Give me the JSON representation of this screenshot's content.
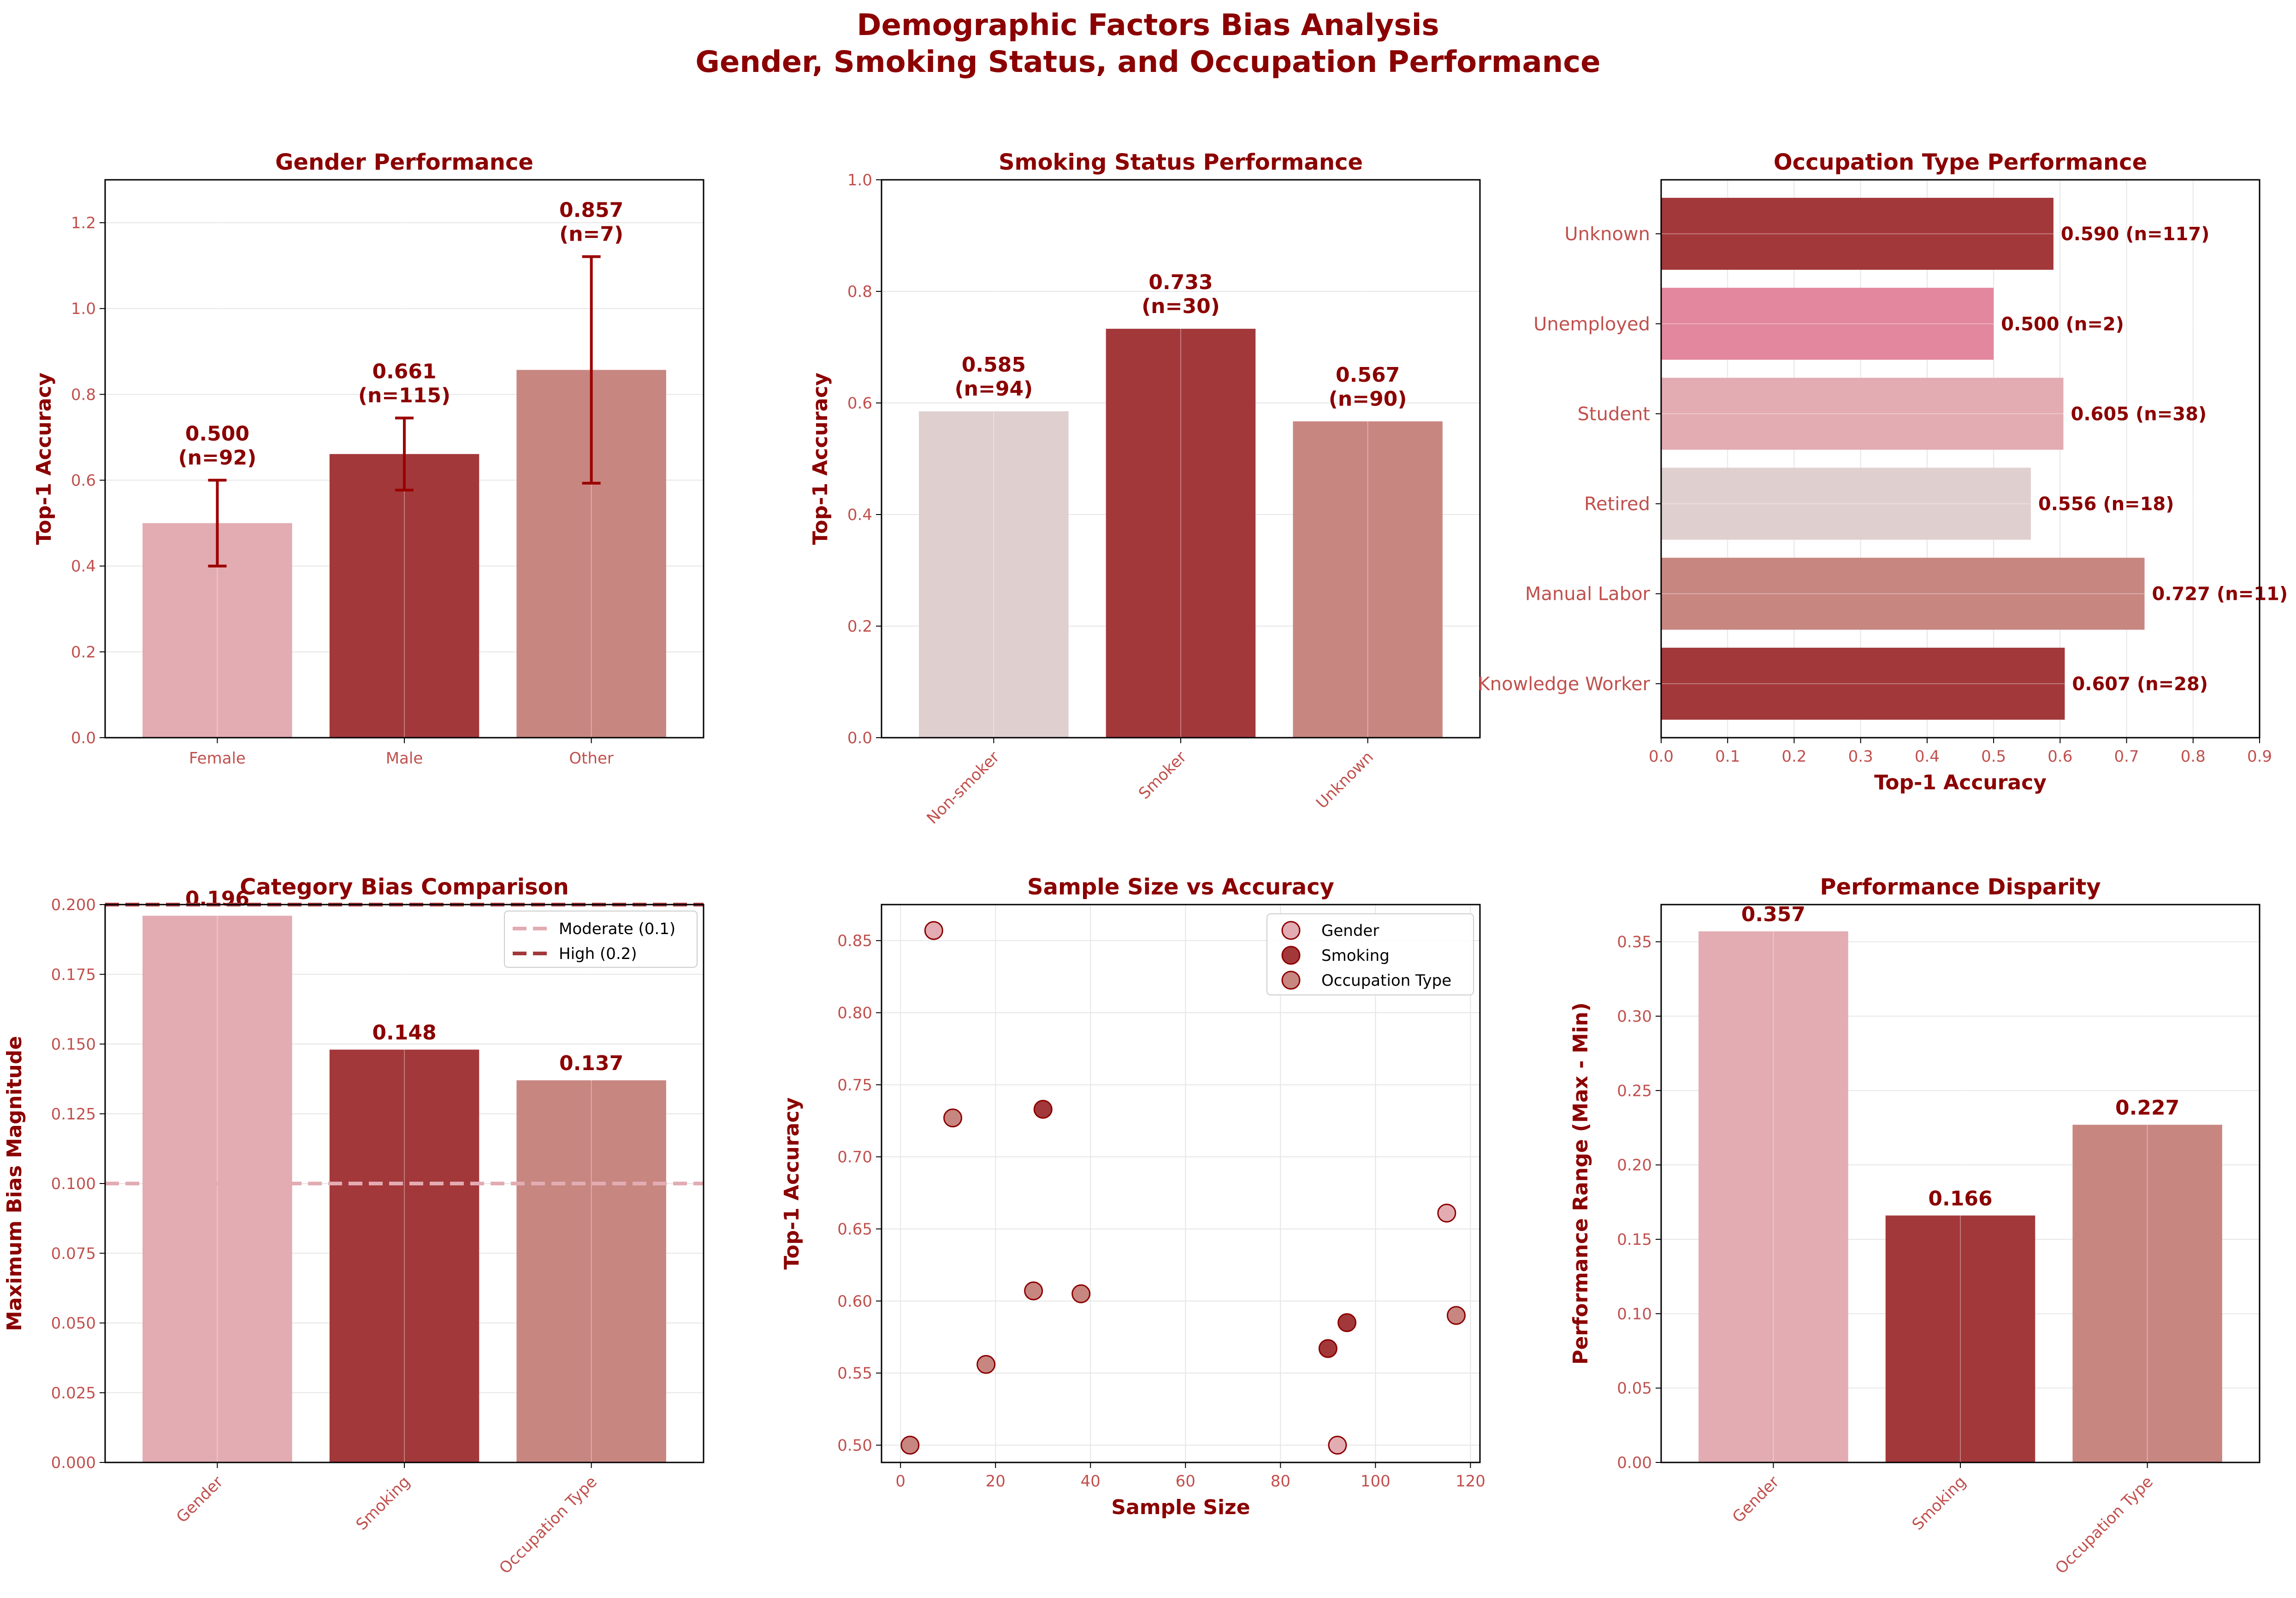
{
  "figure": {
    "title_line1": "Demographic Factors Bias Analysis",
    "title_line2": "Gender, Smoking Status, and Occupation Performance"
  },
  "colors": {
    "title": "#8b0000",
    "tick": "#c0504d",
    "dark_red": "#a3383a",
    "pink": "#e2acb2",
    "rose": "#c88681",
    "greige": "#dfcfcf",
    "hot_pink": "#e2879e",
    "error_bar": "#9b0000",
    "grid": "#e6e6e6"
  },
  "chart_data": [
    {
      "id": "gender",
      "type": "bar",
      "title": "Gender Performance",
      "xlabel": "",
      "ylabel": "Top-1 Accuracy",
      "categories": [
        "Female",
        "Male",
        "Other"
      ],
      "values": [
        0.5,
        0.661,
        0.857
      ],
      "n": [
        92,
        115,
        7
      ],
      "value_labels": [
        "0.500",
        "0.661",
        "0.857"
      ],
      "n_labels": [
        "(n=92)",
        "(n=115)",
        "(n=7)"
      ],
      "error_low": [
        0.4,
        0.577,
        0.593
      ],
      "error_high": [
        0.6,
        0.745,
        1.121
      ],
      "bar_colors": [
        "#e2acb2",
        "#a3383a",
        "#c88681"
      ],
      "ylim": [
        0,
        1.3
      ],
      "yticks": [
        0.0,
        0.2,
        0.4,
        0.6,
        0.8,
        1.0,
        1.2
      ],
      "ytick_labels": [
        "0.0",
        "0.2",
        "0.4",
        "0.6",
        "0.8",
        "1.0",
        "1.2"
      ],
      "grid": true
    },
    {
      "id": "smoking",
      "type": "bar",
      "title": "Smoking Status Performance",
      "xlabel": "",
      "ylabel": "Top-1 Accuracy",
      "categories": [
        "Non-smoker",
        "Smoker",
        "Unknown"
      ],
      "values": [
        0.585,
        0.733,
        0.567
      ],
      "value_labels": [
        "0.585",
        "0.733",
        "0.567"
      ],
      "n_labels": [
        "(n=94)",
        "(n=30)",
        "(n=90)"
      ],
      "bar_colors": [
        "#dfcfcf",
        "#a3383a",
        "#c88681"
      ],
      "ylim": [
        0,
        1.0
      ],
      "yticks": [
        0.0,
        0.2,
        0.4,
        0.6,
        0.8,
        1.0
      ],
      "ytick_labels": [
        "0.0",
        "0.2",
        "0.4",
        "0.6",
        "0.8",
        "1.0"
      ],
      "grid": true
    },
    {
      "id": "occupation",
      "type": "bar",
      "orientation": "horizontal",
      "title": "Occupation Type Performance",
      "xlabel": "Top-1 Accuracy",
      "ylabel": "",
      "categories": [
        "Knowledge Worker",
        "Manual Labor",
        "Retired",
        "Student",
        "Unemployed",
        "Unknown"
      ],
      "values": [
        0.607,
        0.727,
        0.556,
        0.605,
        0.5,
        0.59
      ],
      "value_labels": [
        "0.607 (n=28)",
        "0.727 (n=11)",
        "0.556 (n=18)",
        "0.605 (n=38)",
        "0.500 (n=2)",
        "0.590 (n=117)"
      ],
      "bar_colors": [
        "#a3383a",
        "#c88681",
        "#dfcfcf",
        "#e2acb2",
        "#e2879e",
        "#a3383a"
      ],
      "xlim": [
        0,
        0.9
      ],
      "xticks": [
        0.0,
        0.1,
        0.2,
        0.3,
        0.4,
        0.5,
        0.6,
        0.7,
        0.8,
        0.9
      ],
      "xtick_labels": [
        "0.0",
        "0.1",
        "0.2",
        "0.3",
        "0.4",
        "0.5",
        "0.6",
        "0.7",
        "0.8",
        "0.9"
      ],
      "grid": true
    },
    {
      "id": "bias",
      "type": "bar",
      "title": "Category Bias Comparison",
      "xlabel": "",
      "ylabel": "Maximum Bias Magnitude",
      "categories": [
        "Gender",
        "Smoking",
        "Occupation Type"
      ],
      "values": [
        0.196,
        0.148,
        0.137
      ],
      "value_labels": [
        "0.196",
        "0.148",
        "0.137"
      ],
      "bar_colors": [
        "#e2acb2",
        "#a3383a",
        "#c88681"
      ],
      "ylim": [
        0,
        0.2
      ],
      "yticks": [
        0.0,
        0.025,
        0.05,
        0.075,
        0.1,
        0.125,
        0.15,
        0.175,
        0.2
      ],
      "ytick_labels": [
        "0.000",
        "0.025",
        "0.050",
        "0.075",
        "0.100",
        "0.125",
        "0.150",
        "0.175",
        "0.200"
      ],
      "reference_lines": [
        {
          "label": "Moderate (0.1)",
          "y": 0.1,
          "color": "#e2acb2"
        },
        {
          "label": "High (0.2)",
          "y": 0.2,
          "color": "#a3383a"
        }
      ],
      "legend": "top-right",
      "grid": true
    },
    {
      "id": "scatter",
      "type": "scatter",
      "title": "Sample Size vs Accuracy",
      "xlabel": "Sample Size",
      "ylabel": "Top-1 Accuracy",
      "xlim": [
        -4,
        122
      ],
      "ylim": [
        0.488,
        0.875
      ],
      "xticks": [
        0,
        20,
        40,
        60,
        80,
        100,
        120
      ],
      "xtick_labels": [
        "0",
        "20",
        "40",
        "60",
        "80",
        "100",
        "120"
      ],
      "yticks": [
        0.5,
        0.55,
        0.6,
        0.65,
        0.7,
        0.75,
        0.8,
        0.85
      ],
      "ytick_labels": [
        "0.50",
        "0.55",
        "0.60",
        "0.65",
        "0.70",
        "0.75",
        "0.80",
        "0.85"
      ],
      "series": [
        {
          "name": "Gender",
          "color": "#e2acb2",
          "x": [
            92,
            115,
            7
          ],
          "y": [
            0.5,
            0.661,
            0.857
          ]
        },
        {
          "name": "Smoking",
          "color": "#a3383a",
          "x": [
            94,
            30,
            90
          ],
          "y": [
            0.585,
            0.733,
            0.567
          ]
        },
        {
          "name": "Occupation Type",
          "color": "#c88681",
          "x": [
            28,
            11,
            18,
            38,
            2,
            117
          ],
          "y": [
            0.607,
            0.727,
            0.556,
            0.605,
            0.5,
            0.59
          ]
        }
      ],
      "legend": "top-right",
      "grid": true
    },
    {
      "id": "disparity",
      "type": "bar",
      "title": "Performance Disparity",
      "xlabel": "",
      "ylabel": "Performance Range (Max - Min)",
      "categories": [
        "Gender",
        "Smoking",
        "Occupation Type"
      ],
      "values": [
        0.357,
        0.166,
        0.227
      ],
      "value_labels": [
        "0.357",
        "0.166",
        "0.227"
      ],
      "bar_colors": [
        "#e2acb2",
        "#a3383a",
        "#c88681"
      ],
      "ylim": [
        0,
        0.375
      ],
      "yticks": [
        0.0,
        0.05,
        0.1,
        0.15,
        0.2,
        0.25,
        0.3,
        0.35
      ],
      "ytick_labels": [
        "0.00",
        "0.05",
        "0.10",
        "0.15",
        "0.20",
        "0.25",
        "0.30",
        "0.35"
      ],
      "grid": true
    }
  ]
}
